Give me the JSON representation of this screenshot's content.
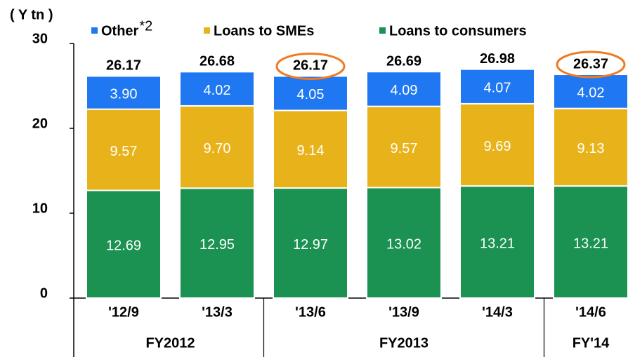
{
  "chart_data": {
    "type": "stacked_bar",
    "axis_label": "( Y tn )",
    "categories": [
      "'12/9",
      "'13/3",
      "'13/6",
      "'13/9",
      "'14/3",
      "'14/6"
    ],
    "groups": [
      {
        "label": "FY2012",
        "size": 2
      },
      {
        "label": "FY2013",
        "size": 3
      },
      {
        "label": "FY'14",
        "size": 1
      }
    ],
    "series": [
      {
        "name": "Loans to consumers",
        "color": "#1b9152",
        "values": [
          12.69,
          12.95,
          12.97,
          13.02,
          13.21,
          13.21
        ]
      },
      {
        "name": "Loans to SMEs",
        "color": "#e8b31a",
        "values": [
          9.57,
          9.7,
          9.14,
          9.57,
          9.69,
          9.13
        ],
        "value_labels": [
          "9.57",
          "9.70",
          "9.14",
          "9.57",
          "9.69",
          "9.13"
        ]
      },
      {
        "name": "Other",
        "note": "*2",
        "color": "#1f78f2",
        "values": [
          3.9,
          4.02,
          4.05,
          4.09,
          4.07,
          4.02
        ],
        "value_labels": [
          "3.90",
          "4.02",
          "4.05",
          "4.09",
          "4.07",
          "4.02"
        ]
      }
    ],
    "totals": [
      26.17,
      26.68,
      26.17,
      26.69,
      26.98,
      26.37
    ],
    "highlighted_totals": [
      2,
      5
    ],
    "highlight_color": "#f07a22",
    "ylim": [
      0,
      30
    ],
    "yticks": [
      0,
      10,
      20,
      30
    ]
  }
}
